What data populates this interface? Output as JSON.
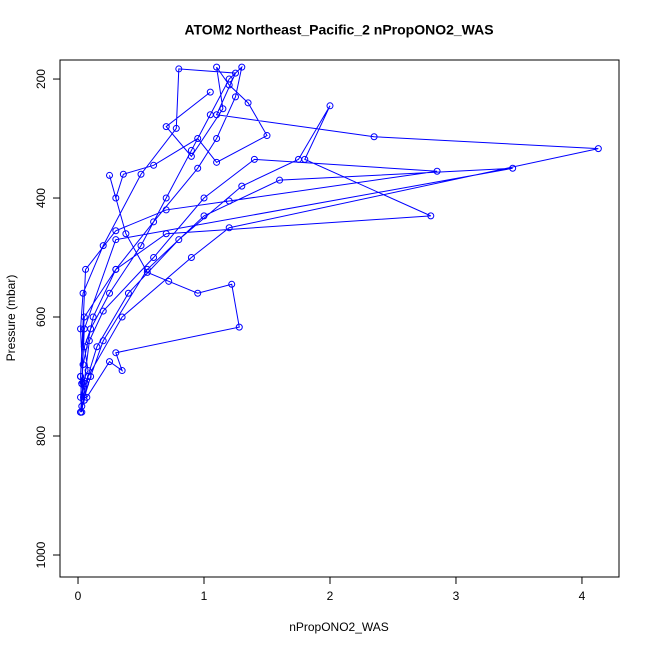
{
  "chart_data": {
    "type": "line",
    "title": "ATOM2 Northeast_Pacific_2 nPropONO2_WAS",
    "x_label": "nPropONO2_WAS",
    "y_label": "Pressure (mbar)",
    "xlim": [
      -0.143,
      4.294
    ],
    "ylim": [
      1037,
      168
    ],
    "xticks": [
      0,
      1,
      2,
      3,
      4
    ],
    "yticks": [
      200,
      400,
      600,
      800,
      1000
    ],
    "markers": true,
    "x": [
      0.02,
      0.05,
      0.03,
      0.08,
      0.05,
      0.1,
      0.25,
      0.5,
      0.7,
      0.9,
      1.05,
      1.2,
      1.3,
      1.25,
      1.1,
      0.95,
      0.6,
      0.3,
      0.12,
      0.04,
      0.02,
      0.03,
      0.06,
      0.15,
      0.4,
      0.8,
      1.3,
      1.75,
      2.0,
      1.8,
      2.8,
      0.7,
      0.3,
      0.05,
      0.02,
      0.03,
      0.1,
      0.2,
      0.55,
      1.0,
      1.6,
      3.45,
      0.3,
      0.05,
      0.03,
      0.05,
      0.08,
      0.35,
      0.9,
      1.2,
      4.13,
      2.35,
      1.1,
      1.25,
      0.8,
      0.78,
      0.5,
      0.2,
      0.04,
      0.02,
      0.04,
      0.02,
      0.09,
      0.2,
      0.6,
      1.0,
      1.4,
      2.85,
      1.2,
      0.7,
      0.3,
      0.06,
      0.02,
      0.07,
      0.25,
      0.35,
      0.3,
      1.28,
      1.22,
      0.95,
      0.72,
      0.55,
      0.38,
      0.25,
      0.3,
      0.36,
      0.6,
      0.95,
      1.1,
      1.5,
      1.35,
      1.2,
      1.1,
      1.15,
      0.9,
      0.7,
      1.05
    ],
    "series": [
      {
        "name": "nPropONO2_WAS",
        "color": "#0000ff",
        "values": [
          760,
          740,
          712,
          690,
          650,
          620,
          560,
          480,
          400,
          320,
          260,
          200,
          180,
          230,
          300,
          350,
          440,
          520,
          600,
          680,
          735,
          760,
          712,
          650,
          560,
          470,
          380,
          335,
          245,
          335,
          430,
          460,
          520,
          600,
          700,
          750,
          700,
          640,
          520,
          430,
          370,
          350,
          470,
          620,
          712,
          740,
          700,
          600,
          500,
          450,
          317,
          297,
          260,
          190,
          183,
          283,
          360,
          480,
          560,
          620,
          710,
          760,
          640,
          590,
          500,
          400,
          335,
          355,
          405,
          420,
          455,
          520,
          700,
          735,
          675,
          690,
          660,
          617,
          545,
          560,
          540,
          525,
          460,
          362,
          400,
          360,
          345,
          300,
          340,
          295,
          240,
          210,
          180,
          250,
          330,
          280,
          222
        ]
      }
    ]
  }
}
